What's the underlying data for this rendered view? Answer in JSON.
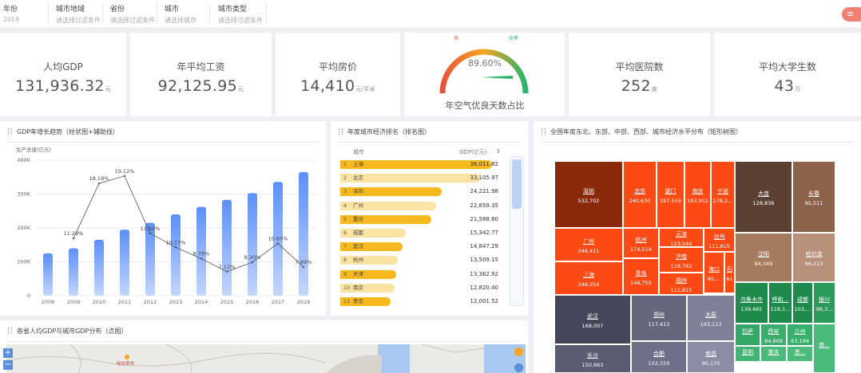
{
  "filters": [
    {
      "label": "年份",
      "value": "2018"
    },
    {
      "label": "城市地域",
      "value": "请选择过滤条件"
    },
    {
      "label": "省份",
      "value": "请选择过滤条件"
    },
    {
      "label": "城市",
      "value": "请选择城市"
    },
    {
      "label": "城市类型",
      "value": "请选择过滤条件"
    }
  ],
  "menu_icon": "≡",
  "kpis": [
    {
      "title": "人均GDP",
      "value": "131,936.32",
      "unit": "元"
    },
    {
      "title": "年平均工资",
      "value": "92,125.95",
      "unit": "元"
    },
    {
      "title": "平均房价",
      "value": "14,410",
      "unit": "元/平米"
    },
    {
      "title": "平均医院数",
      "value": "252",
      "unit": "座"
    },
    {
      "title": "平均大学生数",
      "value": "43",
      "unit": "万"
    }
  ],
  "gauge": {
    "value": "89.60%",
    "fraction": 0.896,
    "title": "年空气优良天数占比",
    "label_low": "良",
    "label_high": "优秀",
    "colors": [
      "#e8543a",
      "#f5a623",
      "#2db36b"
    ]
  },
  "gdp_panel": {
    "title": "GDP年增长趋势（柱状图+辅助线）",
    "chart_data": {
      "type": "bar",
      "ylabel": "生产总值(亿元)",
      "categories": [
        "2008",
        "2009",
        "2010",
        "2011",
        "2012",
        "2013",
        "2014",
        "2015",
        "2016",
        "2017",
        "2018"
      ],
      "series": [
        {
          "type": "bar",
          "values": [
            125000,
            140000,
            165000,
            195000,
            215000,
            240000,
            262000,
            283000,
            303000,
            336000,
            365000
          ]
        },
        {
          "type": "line",
          "values": [
            null,
            11.29,
            18.18,
            19.12,
            11.92,
            10.17,
            8.75,
            7.12,
            8.3,
            10.65,
            7.69
          ],
          "labels": [
            "",
            "11.29%",
            "18.18%",
            "19.12%",
            "11.92%",
            "10.17%",
            "8.75%",
            "7.12%",
            "8.30%",
            "10.65%",
            "7.69%"
          ]
        }
      ],
      "yticks": [
        "0",
        "100K",
        "200K",
        "300K",
        "400K"
      ],
      "ylim": [
        0,
        400000
      ],
      "bar_color": "#5b8ff9"
    }
  },
  "rank_panel": {
    "title": "年度城市经济排名（排名图）",
    "col_city": "城市",
    "col_gdp": "GDP(亿元)",
    "sort_icon": "⇕",
    "rows": [
      {
        "idx": "1",
        "city": "上海",
        "value": "36,011.82",
        "fraction": 1.0
      },
      {
        "idx": "2",
        "city": "北京",
        "value": "33,105.97",
        "fraction": 0.92
      },
      {
        "idx": "3",
        "city": "深圳",
        "value": "24,221.98",
        "fraction": 0.67
      },
      {
        "idx": "4",
        "city": "广州",
        "value": "22,859.35",
        "fraction": 0.63
      },
      {
        "idx": "5",
        "city": "重庆",
        "value": "21,588.80",
        "fraction": 0.6
      },
      {
        "idx": "6",
        "city": "成都",
        "value": "15,342.77",
        "fraction": 0.43
      },
      {
        "idx": "7",
        "city": "武汉",
        "value": "14,847.29",
        "fraction": 0.41
      },
      {
        "idx": "8",
        "city": "杭州",
        "value": "13,509.15",
        "fraction": 0.38
      },
      {
        "idx": "9",
        "city": "天津",
        "value": "13,362.92",
        "fraction": 0.37
      },
      {
        "idx": "10",
        "city": "南京",
        "value": "12,820.40",
        "fraction": 0.36
      },
      {
        "idx": "11",
        "city": "青岛",
        "value": "12,001.52",
        "fraction": 0.33
      }
    ]
  },
  "treemap_panel": {
    "title": "全国年度东北、东部、中部、西部、城市经济水平分布（矩形树图）",
    "cells": [
      {
        "name": "深圳",
        "value": "532,702",
        "color": "#8b2a0a"
      },
      {
        "name": "北京",
        "value": "240,630",
        "color": "#fc4a14"
      },
      {
        "name": "厦门",
        "value": "197,559",
        "color": "#fc4a14"
      },
      {
        "name": "南京",
        "value": "183,952",
        "color": "#fc4a14"
      },
      {
        "name": "宁波",
        "value": "178,2...",
        "color": "#fc4a14"
      },
      {
        "name": "广州",
        "value": "246,411",
        "color": "#fc4a14"
      },
      {
        "name": "杭州",
        "value": "174,514",
        "color": "#fc4a14"
      },
      {
        "name": "天津",
        "value": "123,544",
        "color": "#fc4a14"
      },
      {
        "name": "台州",
        "value": "111,815",
        "color": "#fc4a14"
      },
      {
        "name": "上海",
        "value": "246,254",
        "color": "#fc4a14"
      },
      {
        "name": "青岛",
        "value": "146,755",
        "color": "#fc4a14"
      },
      {
        "name": "济南",
        "value": "119,782",
        "color": "#fc4a14"
      },
      {
        "name": "海口",
        "value": "85,...",
        "color": "#fc4a14"
      },
      {
        "name": "石",
        "value": "61",
        "color": "#fc4a14"
      },
      {
        "name": "福州",
        "value": "111,815",
        "color": "#fc4a14"
      },
      {
        "name": "大连",
        "value": "128,836",
        "color": "#5c4033"
      },
      {
        "name": "长春",
        "value": "95,511",
        "color": "#8d6248"
      },
      {
        "name": "沈阳",
        "value": "84,349",
        "color": "#a67a5e"
      },
      {
        "name": "哈尔滨",
        "value": "66,213",
        "color": "#b8907a"
      },
      {
        "name": "武汉",
        "value": "168,007",
        "color": "#44475a"
      },
      {
        "name": "郑州",
        "value": "117,413",
        "color": "#65687d"
      },
      {
        "name": "太原",
        "value": "103,113",
        "color": "#7d8097"
      },
      {
        "name": "长沙",
        "value": "150,963",
        "color": "#5a5d72"
      },
      {
        "name": "合肥",
        "value": "102,310",
        "color": "#6e7187"
      },
      {
        "name": "南昌",
        "value": "90,170",
        "color": "#8a8da3"
      },
      {
        "name": "乌鲁木齐",
        "value": "139,465",
        "color": "#1e8a4c"
      },
      {
        "name": "呼和...",
        "value": "118,1...",
        "color": "#1e8a4c"
      },
      {
        "name": "成都",
        "value": "103,...",
        "color": "#1e8a4c"
      },
      {
        "name": "银川",
        "value": "98,3...",
        "color": "#2c9a5a"
      },
      {
        "name": "拉萨",
        "value": "",
        "color": "#34a866"
      },
      {
        "name": "西安",
        "value": "84,609",
        "color": "#3aaf6d"
      },
      {
        "name": "兰州",
        "value": "83,199",
        "color": "#3aaf6d"
      },
      {
        "name": "昆明",
        "value": "",
        "color": "#41b574"
      },
      {
        "name": "重庆",
        "value": "",
        "color": "#4abb7b"
      },
      {
        "name": "贵...",
        "value": "",
        "color": "#4abb7b"
      },
      {
        "name": "南...",
        "value": "",
        "color": "#4abb7b"
      }
    ]
  },
  "map_panel": {
    "title": "各省人均GDP与城市GDP分布（点图）",
    "zoom_in": "+",
    "zoom_out": "−",
    "map_label": "哈尔滨市"
  }
}
